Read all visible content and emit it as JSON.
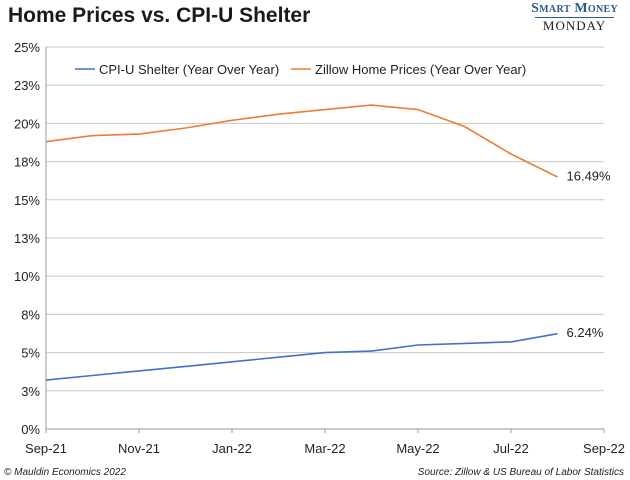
{
  "header": {
    "title": "Home Prices vs. CPI-U Shelter",
    "brand_top": "Smart Money",
    "brand_bottom": "MONDAY"
  },
  "footer": {
    "left": "© Mauldin Economics 2022",
    "right": "Source: Zillow & US Bureau of Labor Statistics"
  },
  "chart_data": {
    "type": "line",
    "title": "Home Prices vs. CPI-U Shelter",
    "xlabel": "",
    "ylabel": "",
    "x_ticks": [
      "Sep-21",
      "Nov-21",
      "Jan-22",
      "Mar-22",
      "May-22",
      "Jul-22",
      "Sep-22"
    ],
    "x": [
      "Sep-21",
      "Oct-21",
      "Nov-21",
      "Dec-21",
      "Jan-22",
      "Feb-22",
      "Mar-22",
      "Apr-22",
      "May-22",
      "Jun-22",
      "Jul-22",
      "Aug-22"
    ],
    "y_ticks": [
      "0%",
      "3%",
      "5%",
      "8%",
      "10%",
      "13%",
      "15%",
      "18%",
      "20%",
      "23%",
      "25%"
    ],
    "ylim": [
      0,
      25
    ],
    "grid": true,
    "legend_position": "top",
    "series": [
      {
        "name": "CPI-U Shelter (Year Over Year)",
        "color": "#4472c4",
        "values": [
          3.2,
          3.5,
          3.8,
          4.1,
          4.4,
          4.7,
          5.0,
          5.1,
          5.5,
          5.6,
          5.7,
          6.24
        ],
        "end_label": "6.24%"
      },
      {
        "name": "Zillow Home Prices (Year Over Year)",
        "color": "#ed7d31",
        "values": [
          18.8,
          19.2,
          19.3,
          19.7,
          20.2,
          20.6,
          20.9,
          21.2,
          20.9,
          19.8,
          18.0,
          16.49
        ],
        "end_label": "16.49%"
      }
    ]
  }
}
